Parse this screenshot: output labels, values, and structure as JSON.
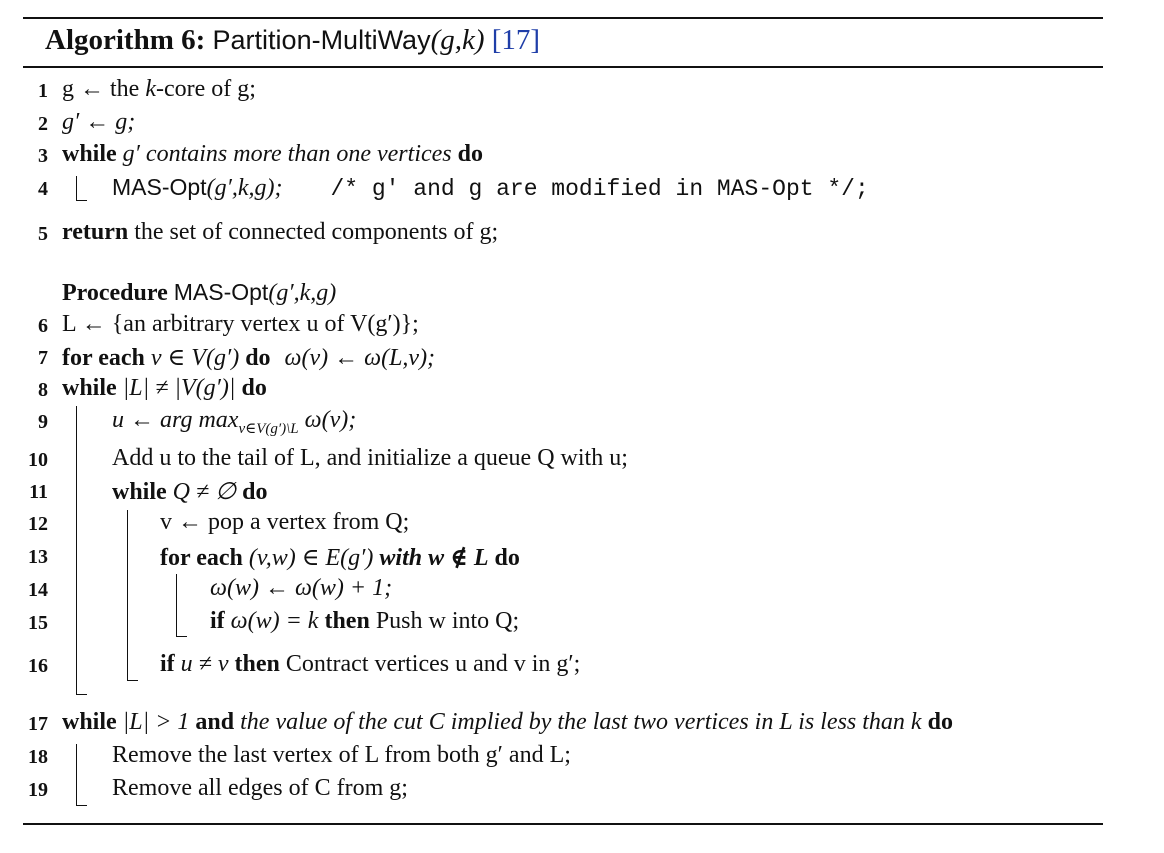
{
  "caption": {
    "label": "Algorithm 6:",
    "name": "Partition-MultiWay",
    "args": "(g,k)",
    "citation": "[17]"
  },
  "line_numbers": [
    "1",
    "2",
    "3",
    "4",
    "5",
    "6",
    "7",
    "8",
    "9",
    "10",
    "11",
    "12",
    "13",
    "14",
    "15",
    "16",
    "17",
    "18",
    "19"
  ],
  "lines": {
    "l1": {
      "pre": "g ← the ",
      "k": "k",
      "post": "-core of g;"
    },
    "l2": {
      "text": "g′ ← g;"
    },
    "l3": {
      "kw": "while",
      "cond": "g′ contains more than one vertices",
      "kw2": "do"
    },
    "l4": {
      "call": "MAS-Opt",
      "args": "(g′,k,g);",
      "comment": "/* g′ and g are modified in MAS-Opt  */;"
    },
    "l5": {
      "kw": "return",
      "text": "the set of connected components of g;"
    },
    "procedure": {
      "kw": "Procedure",
      "name": "MAS-Opt",
      "args": "(g′,k,g)"
    },
    "l6": {
      "text": "L ← {an arbitrary vertex u of V(g′)};"
    },
    "l7": {
      "kw": "for each",
      "mid": "v ∈ V(g′)",
      "kw2": "do",
      "post": "ω(v) ← ω(L,v);"
    },
    "l8": {
      "kw": "while",
      "mid": "|L| ≠ |V(g′)|",
      "kw2": "do"
    },
    "l9": {
      "pre": "u ← arg max",
      "sub": "v∈V(g′)\\L",
      "post": "ω(v);"
    },
    "l10": {
      "text": "Add u to the tail of L, and initialize a queue Q with u;"
    },
    "l11": {
      "kw": "while",
      "mid": "Q ≠ ∅",
      "kw2": "do"
    },
    "l12": {
      "text": "v ← pop a vertex from Q;"
    },
    "l13": {
      "kw": "for each",
      "mid": "(v,w) ∈ E(g′)",
      "cond": "with w ∉ L",
      "kw2": "do"
    },
    "l14": {
      "text": "ω(w) ← ω(w) + 1;"
    },
    "l15": {
      "kw": "if",
      "mid": "ω(w) = k",
      "kw2": "then",
      "post": "Push w into Q;"
    },
    "l16": {
      "kw": "if",
      "mid": "u ≠ v",
      "kw2": "then",
      "post": "Contract vertices u and v in g′;"
    },
    "l17": {
      "kw": "while",
      "mid": "|L| > 1",
      "kw_and": "and",
      "cond": "the value of the cut C implied by the last two vertices in L is less than k",
      "kw2": "do"
    },
    "l18": {
      "text": "Remove the last vertex of L from both g′ and L;"
    },
    "l19": {
      "text": "Remove all edges of C from g;"
    }
  }
}
